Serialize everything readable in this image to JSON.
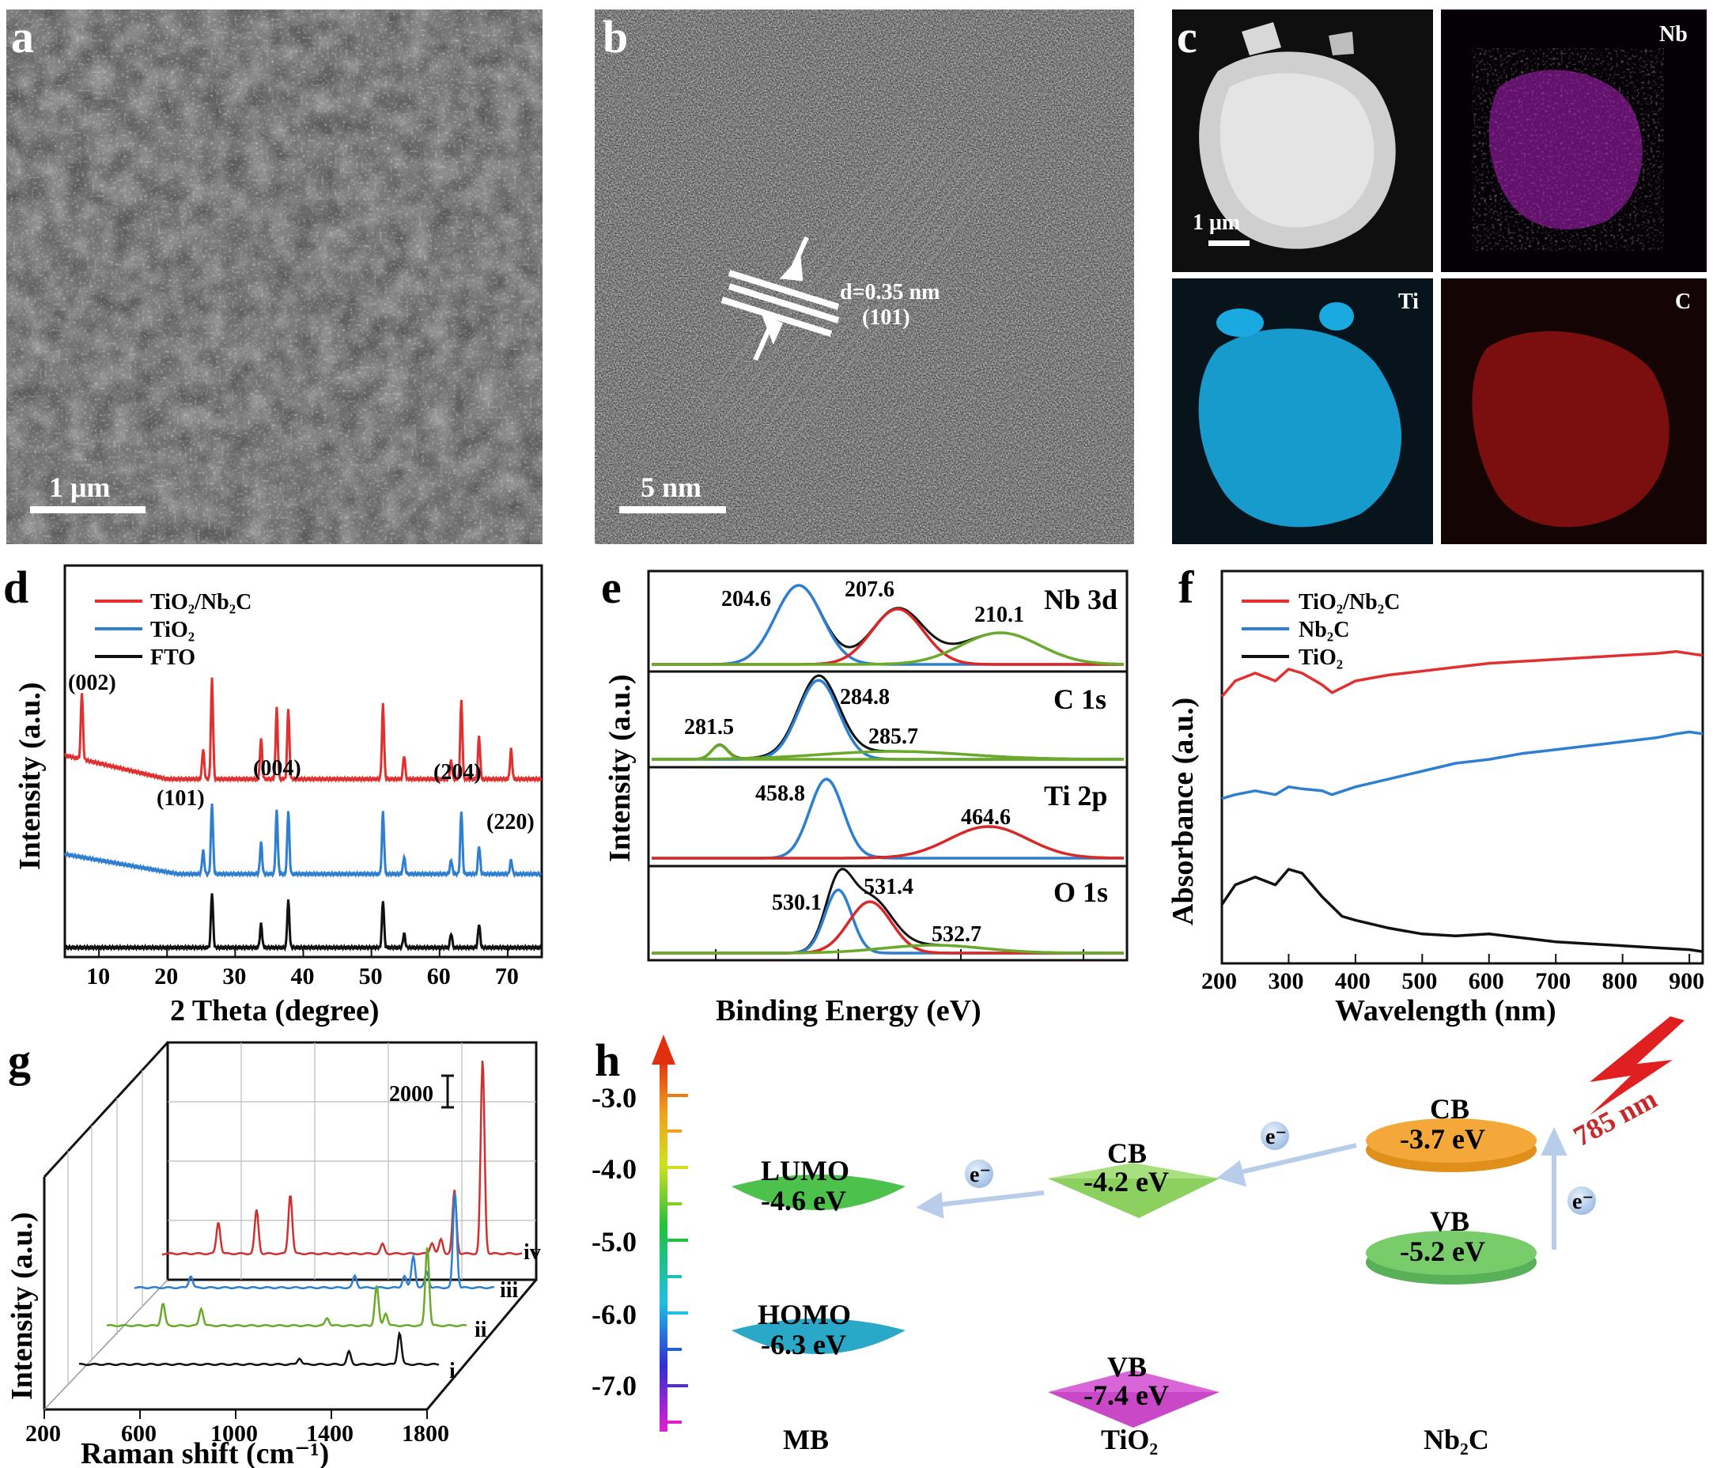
{
  "panels": {
    "a": {
      "label": "a",
      "scalebar": "1 μm"
    },
    "b": {
      "label": "b",
      "scalebar": "5 nm",
      "lattice": "d=0.35 nm",
      "plane": "(101)"
    },
    "c": {
      "label": "c",
      "scalebar": "1 μm",
      "maps": [
        "Nb",
        "Ti",
        "C"
      ],
      "colors": {
        "Nb": "#c21fd0",
        "Ti": "#1aa9e0",
        "C": "#d01818"
      }
    },
    "d": {
      "label": "d",
      "xlabel": "2 Theta (degree)",
      "ylabel": "Intensity (a.u.)",
      "legend": [
        "TiO₂/Nb₂C",
        "TiO₂",
        "FTO"
      ],
      "peaks": [
        "(002)",
        "(101)",
        "(004)",
        "(204)",
        "(220)"
      ]
    },
    "e": {
      "label": "e",
      "xlabel": "Binding Energy (eV)",
      "ylabel": "Intensity (a.u.)",
      "subpanels": [
        {
          "name": "Nb 3d",
          "peaks": [
            "204.6",
            "207.6",
            "210.1"
          ]
        },
        {
          "name": "C 1s",
          "peaks": [
            "284.8",
            "281.5",
            "285.7"
          ]
        },
        {
          "name": "Ti 2p",
          "peaks": [
            "458.8",
            "464.6"
          ]
        },
        {
          "name": "O 1s",
          "peaks": [
            "530.1",
            "531.4",
            "532.7"
          ]
        }
      ]
    },
    "f": {
      "label": "f",
      "xlabel": "Wavelength (nm)",
      "ylabel": "Absorbance (a.u.)",
      "legend": [
        "TiO₂/Nb₂C",
        "Nb₂C",
        "TiO₂"
      ]
    },
    "g": {
      "label": "g",
      "xlabel": "Raman shift (cm⁻¹)",
      "ylabel": "Intensity (a.u.)",
      "scale": "2000",
      "traces": [
        "iv",
        "iii",
        "ii",
        "i"
      ]
    },
    "h": {
      "label": "h",
      "axis_ticks": [
        "-3.0",
        "-4.0",
        "-5.0",
        "-6.0",
        "-7.0"
      ],
      "MB": {
        "name": "MB",
        "lumo_label": "LUMO",
        "lumo": "-4.6 eV",
        "homo_label": "HOMO",
        "homo": "-6.3 eV"
      },
      "TiO2": {
        "name": "TiO₂",
        "cb_label": "CB",
        "cb": "-4.2 eV",
        "vb_label": "VB",
        "vb": "-7.4 eV"
      },
      "Nb2C": {
        "name": "Nb₂C",
        "cb_label": "CB",
        "cb": "-3.7 eV",
        "vb_label": "VB",
        "vb": "-5.2 eV"
      },
      "electron": "e⁻",
      "laser": "785 nm"
    }
  },
  "chart_data": [
    {
      "type": "line",
      "panel": "d",
      "xlabel": "2 Theta (degree)",
      "ylabel": "Intensity (a.u.)",
      "xlim": [
        5,
        75
      ],
      "xticks": [
        10,
        20,
        30,
        40,
        50,
        60,
        70
      ],
      "series": [
        {
          "name": "TiO₂/Nb₂C",
          "color": "#e03030",
          "peaks": [
            7.5,
            25.3,
            26.6,
            33.8,
            36.1,
            37.8,
            51.7,
            54.8,
            61.7,
            63.2,
            65.8,
            70.5
          ]
        },
        {
          "name": "TiO₂",
          "color": "#2f7fd0",
          "peaks": [
            25.3,
            26.6,
            33.8,
            36.1,
            37.8,
            51.7,
            54.8,
            61.7,
            63.2,
            65.8,
            70.5
          ]
        },
        {
          "name": "FTO",
          "color": "#111111",
          "peaks": [
            26.6,
            33.8,
            37.8,
            51.7,
            54.8,
            61.7,
            65.8
          ]
        }
      ]
    },
    {
      "type": "line",
      "panel": "e",
      "xlabel": "Binding Energy (eV)",
      "ylabel": "Intensity (a.u.)",
      "subpanels": [
        {
          "name": "Nb 3d",
          "peaks": [
            204.6,
            207.6,
            210.1
          ]
        },
        {
          "name": "C 1s",
          "peaks": [
            281.5,
            284.8,
            285.7
          ]
        },
        {
          "name": "Ti 2p",
          "peaks": [
            458.8,
            464.6
          ]
        },
        {
          "name": "O 1s",
          "peaks": [
            530.1,
            531.4,
            532.7
          ]
        }
      ]
    },
    {
      "type": "line",
      "panel": "f",
      "xlabel": "Wavelength (nm)",
      "ylabel": "Absorbance (a.u.)",
      "xlim": [
        200,
        920
      ],
      "xticks": [
        200,
        300,
        400,
        500,
        600,
        700,
        800,
        900
      ],
      "series": [
        {
          "name": "TiO₂/Nb₂C",
          "color": "#e03030",
          "x": [
            200,
            220,
            250,
            280,
            300,
            320,
            350,
            365,
            400,
            450,
            500,
            550,
            600,
            650,
            700,
            750,
            800,
            850,
            880,
            900,
            920
          ],
          "y": [
            0.68,
            0.72,
            0.74,
            0.72,
            0.75,
            0.74,
            0.71,
            0.69,
            0.72,
            0.735,
            0.745,
            0.755,
            0.765,
            0.77,
            0.775,
            0.78,
            0.785,
            0.79,
            0.795,
            0.79,
            0.785
          ]
        },
        {
          "name": "Nb₂C",
          "color": "#2f7fd0",
          "x": [
            200,
            220,
            250,
            280,
            300,
            320,
            350,
            365,
            400,
            450,
            500,
            550,
            600,
            650,
            700,
            750,
            800,
            850,
            880,
            900,
            920
          ],
          "y": [
            0.42,
            0.43,
            0.44,
            0.43,
            0.45,
            0.445,
            0.44,
            0.43,
            0.45,
            0.47,
            0.49,
            0.51,
            0.52,
            0.535,
            0.545,
            0.555,
            0.565,
            0.575,
            0.585,
            0.59,
            0.585
          ]
        },
        {
          "name": "TiO₂",
          "color": "#111111",
          "x": [
            200,
            220,
            250,
            280,
            300,
            320,
            350,
            380,
            400,
            450,
            500,
            550,
            600,
            650,
            700,
            750,
            800,
            850,
            900,
            920
          ],
          "y": [
            0.15,
            0.2,
            0.22,
            0.2,
            0.24,
            0.23,
            0.17,
            0.12,
            0.11,
            0.09,
            0.075,
            0.07,
            0.075,
            0.065,
            0.055,
            0.05,
            0.045,
            0.04,
            0.035,
            0.03
          ]
        }
      ]
    },
    {
      "type": "line",
      "panel": "g",
      "xlabel": "Raman shift (cm⁻¹)",
      "ylabel": "Intensity (a.u.)",
      "xticks": [
        200,
        600,
        1000,
        1400,
        1800
      ],
      "series": [
        {
          "name": "iv",
          "color": "#d03030",
          "peaks": [
            450,
            620,
            770,
            1180,
            1400,
            1440,
            1500,
            1625
          ]
        },
        {
          "name": "iii",
          "color": "#2f7fd0",
          "peaks": [
            450,
            1180,
            1400,
            1440,
            1500,
            1625
          ]
        },
        {
          "name": "ii",
          "color": "#6aaa2a",
          "peaks": [
            450,
            620,
            1180,
            1400,
            1440,
            1625
          ]
        },
        {
          "name": "i",
          "color": "#111111",
          "peaks": [
            1180,
            1400,
            1625
          ]
        }
      ]
    }
  ]
}
